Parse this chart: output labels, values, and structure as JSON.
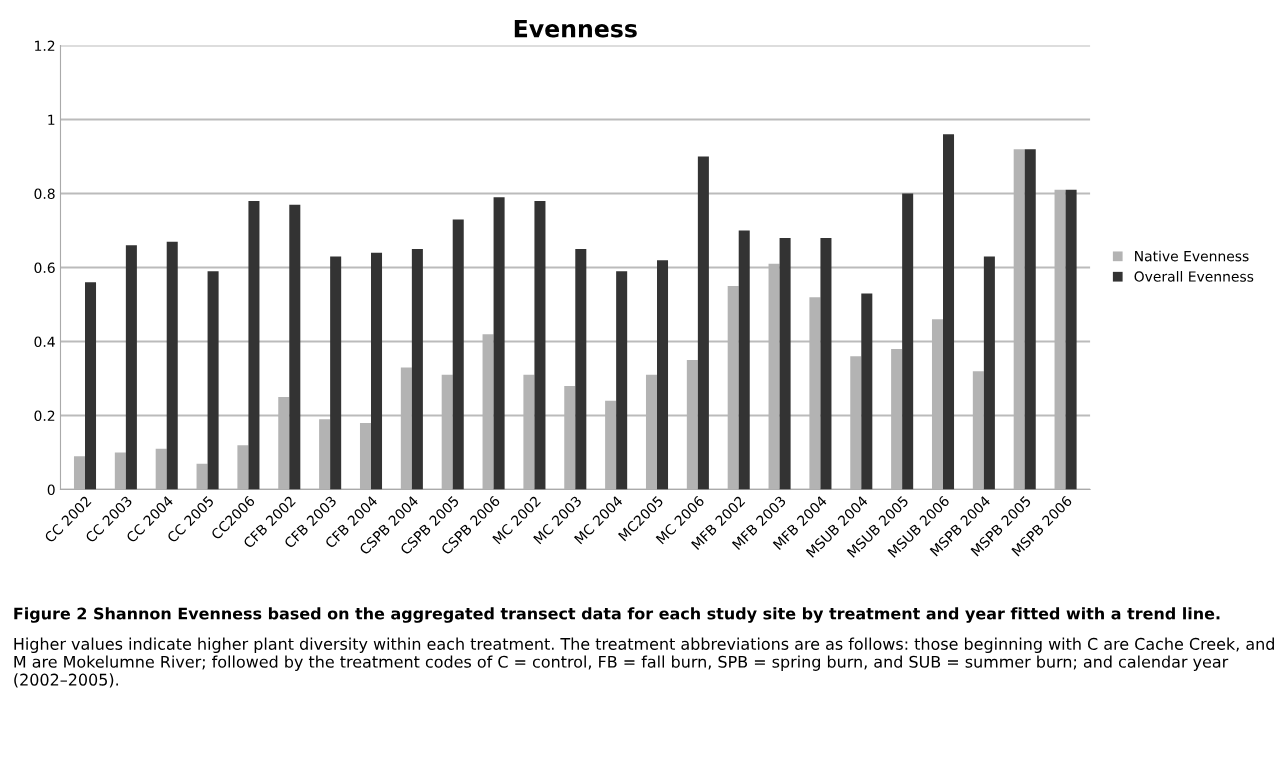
{
  "chart_data": {
    "type": "bar",
    "title": "Evenness",
    "categories": [
      "CC 2002",
      "CC 2003",
      "CC 2004",
      "CC 2005",
      "CC2006",
      "CFB 2002",
      "CFB 2003",
      "CFB 2004",
      "CSPB 2004",
      "CSPB 2005",
      "CSPB 2006",
      "MC 2002",
      "MC 2003",
      "MC 2004",
      "MC2005",
      "MC 2006",
      "MFB 2002",
      "MFB 2003",
      "MFB 2004",
      "MSUB 2004",
      "MSUB 2005",
      "MSUB 2006",
      "MSPB 2004",
      "MSPB 2005",
      "MSPB 2006"
    ],
    "series": [
      {
        "name": "Native Evenness",
        "color": "#b3b3b3",
        "values": [
          0.09,
          0.1,
          0.11,
          0.07,
          0.12,
          0.25,
          0.19,
          0.18,
          0.33,
          0.31,
          0.42,
          0.31,
          0.28,
          0.24,
          0.31,
          0.35,
          0.55,
          0.61,
          0.52,
          0.36,
          0.38,
          0.46,
          0.32,
          0.92,
          0.81
        ]
      },
      {
        "name": "Overall Evenness",
        "color": "#333333",
        "values": [
          0.56,
          0.66,
          0.67,
          0.59,
          0.78,
          0.77,
          0.63,
          0.64,
          0.65,
          0.73,
          0.79,
          0.78,
          0.65,
          0.59,
          0.62,
          0.9,
          0.7,
          0.68,
          0.68,
          0.53,
          0.8,
          0.96,
          0.63,
          0.92,
          0.81
        ]
      }
    ],
    "ylim": [
      0,
      1.2
    ],
    "yticks": [
      0,
      0.2,
      0.4,
      0.6,
      0.8,
      1,
      1.2
    ],
    "grid": "y",
    "legend": "right",
    "annotations": [
      "Figure 2 Shannon Evenness based on the aggregated transect data for each study site by treatment and year fitted with a trend line.",
      "Higher values indicate higher plant diversity within each treatment. The treatment abbreviations are as follows: those beginning with C are Cache Creek, and M are Mokelumne River; followed by the treatment codes of C = control, FB = fall burn, SPB = spring burn, and SUB = summer burn; and calendar year (2002–2005)."
    ]
  }
}
